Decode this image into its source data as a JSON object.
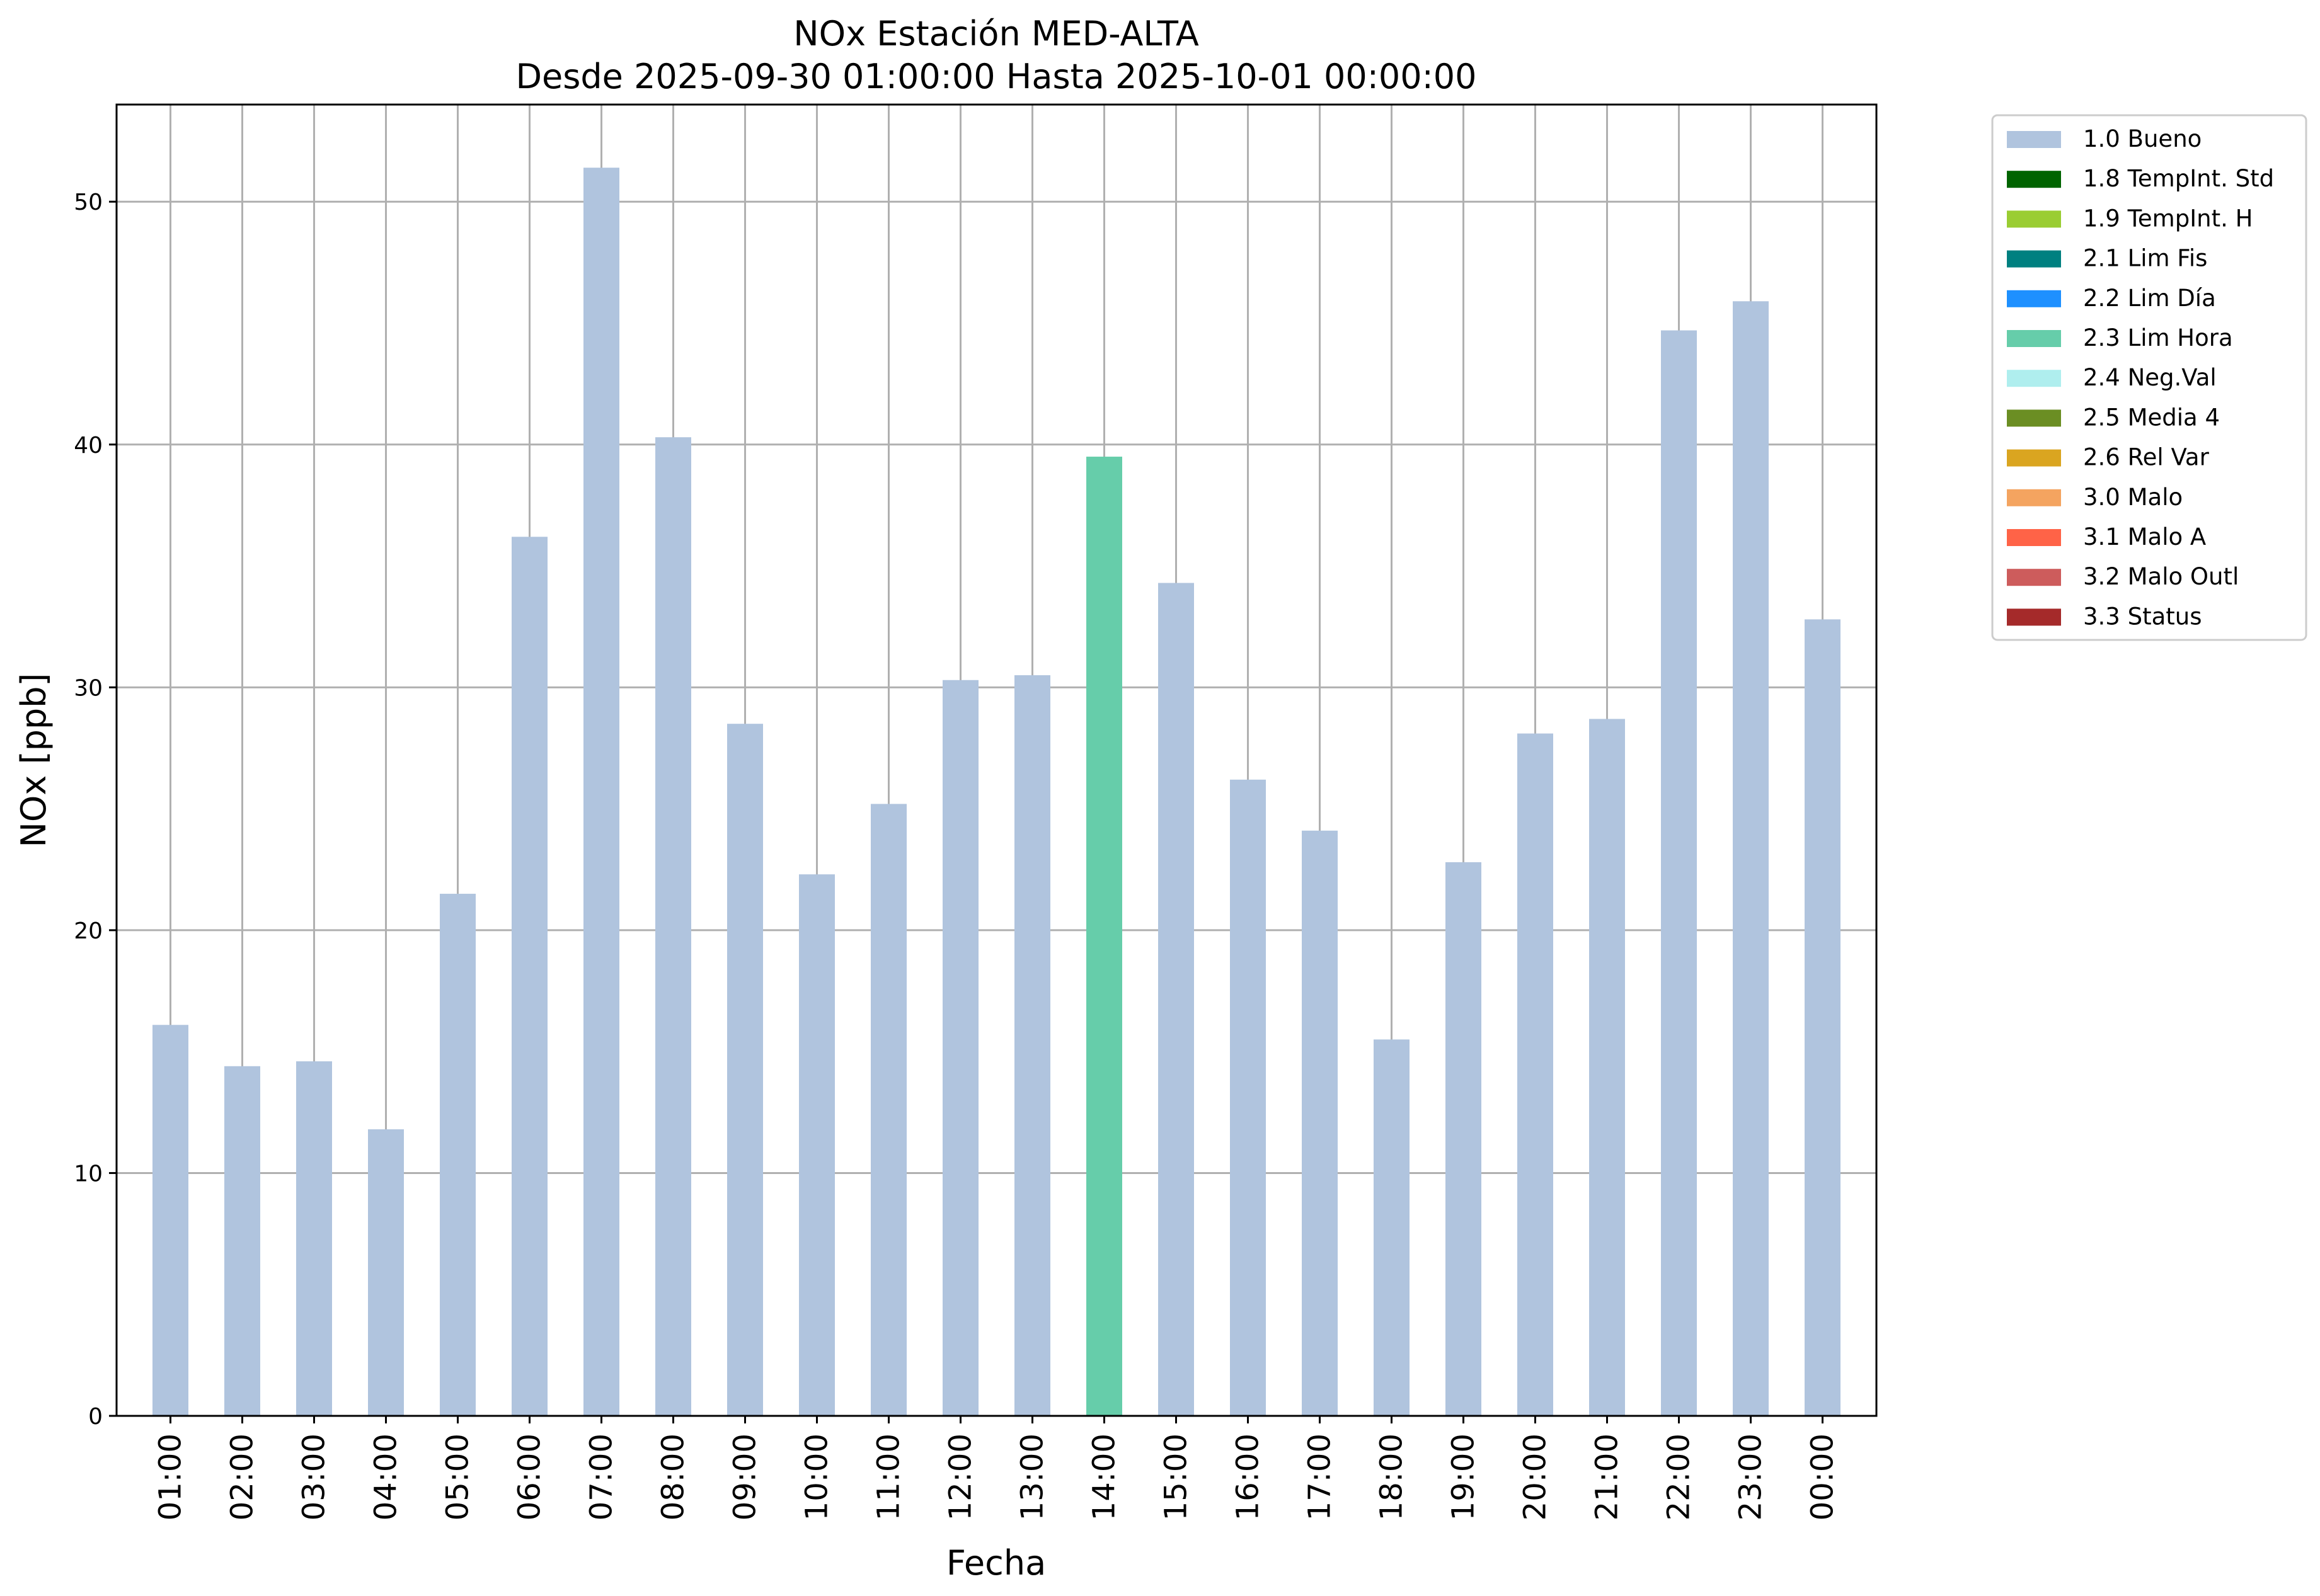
{
  "chart_data": {
    "type": "bar",
    "title": "NOx Estación MED-ALTA",
    "subtitle": "Desde 2025-09-30 01:00:00 Hasta 2025-10-01 00:00:00",
    "xlabel": "Fecha",
    "ylabel": "NOx [ppb]",
    "ylim": [
      0,
      54
    ],
    "yticks": [
      0,
      10,
      20,
      30,
      40,
      50
    ],
    "grid": true,
    "legend_position": "outside-top-right",
    "categories": [
      "01:00",
      "02:00",
      "03:00",
      "04:00",
      "05:00",
      "06:00",
      "07:00",
      "08:00",
      "09:00",
      "10:00",
      "11:00",
      "12:00",
      "13:00",
      "14:00",
      "15:00",
      "16:00",
      "17:00",
      "18:00",
      "19:00",
      "20:00",
      "21:00",
      "22:00",
      "23:00",
      "00:00"
    ],
    "values": [
      16.1,
      14.4,
      14.6,
      11.8,
      21.5,
      36.2,
      51.4,
      40.3,
      28.5,
      22.3,
      25.2,
      30.3,
      30.5,
      39.5,
      34.3,
      26.2,
      24.1,
      15.5,
      22.8,
      28.1,
      28.7,
      44.7,
      45.9,
      32.8
    ],
    "flags": [
      "1.0 Bueno",
      "1.0 Bueno",
      "1.0 Bueno",
      "1.0 Bueno",
      "1.0 Bueno",
      "1.0 Bueno",
      "1.0 Bueno",
      "1.0 Bueno",
      "1.0 Bueno",
      "1.0 Bueno",
      "1.0 Bueno",
      "1.0 Bueno",
      "1.0 Bueno",
      "2.3 Lim Hora",
      "1.0 Bueno",
      "1.0 Bueno",
      "1.0 Bueno",
      "1.0 Bueno",
      "1.0 Bueno",
      "1.0 Bueno",
      "1.0 Bueno",
      "1.0 Bueno",
      "1.0 Bueno",
      "1.0 Bueno"
    ],
    "legend": [
      {
        "name": "1.0 Bueno",
        "color": "#b0c4de"
      },
      {
        "name": "1.8 TempInt. Std",
        "color": "#006400"
      },
      {
        "name": "1.9 TempInt. H",
        "color": "#9acd32"
      },
      {
        "name": "2.1 Lim Fis",
        "color": "#008080"
      },
      {
        "name": "2.2 Lim Día",
        "color": "#1e90ff"
      },
      {
        "name": "2.3 Lim Hora",
        "color": "#66cdaa"
      },
      {
        "name": "2.4 Neg.Val",
        "color": "#afeeee"
      },
      {
        "name": "2.5 Media 4",
        "color": "#6b8e23"
      },
      {
        "name": "2.6 Rel Var",
        "color": "#daa520"
      },
      {
        "name": "3.0 Malo",
        "color": "#f4a460"
      },
      {
        "name": "3.1 Malo A",
        "color": "#ff6347"
      },
      {
        "name": "3.2 Malo Outl",
        "color": "#cd5c5c"
      },
      {
        "name": "3.3 Status",
        "color": "#a52a2a"
      }
    ],
    "colors": {
      "grid": "#b0b0b0",
      "axis": "#000000"
    }
  }
}
